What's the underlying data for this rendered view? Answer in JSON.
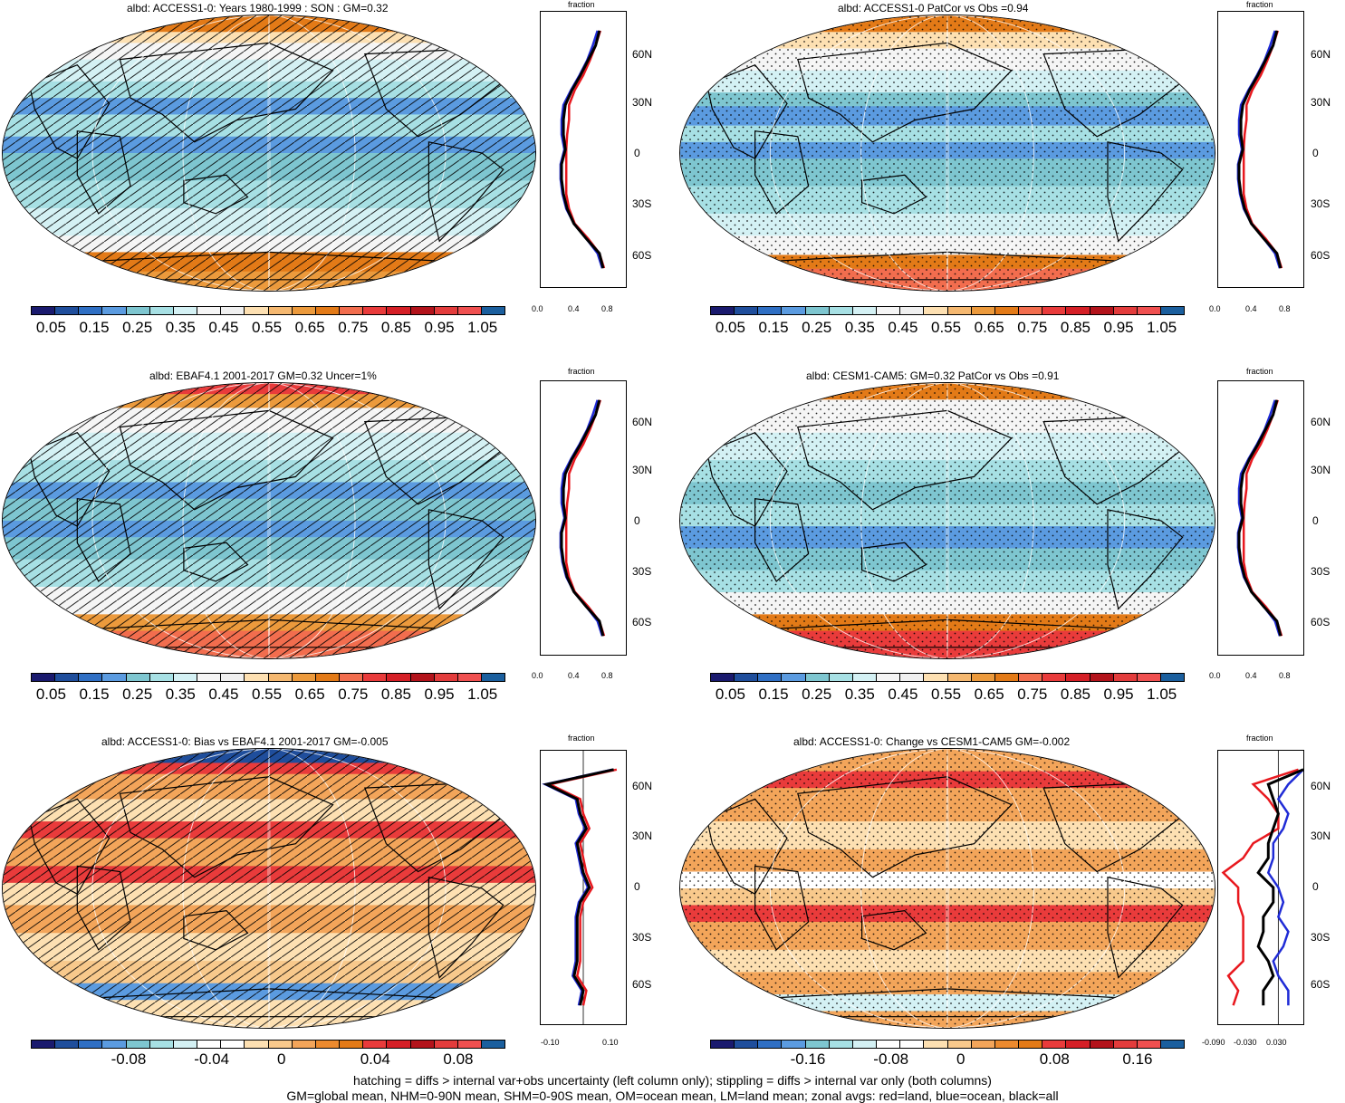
{
  "panels": [
    {
      "title": "albd: ACCESS1-0: Years 1980-1999 : SON : GM=0.32",
      "profile_axis_label": "fraction",
      "lat_ticks": [
        "60N",
        "30N",
        "0",
        "30S",
        "60S"
      ],
      "x_ticks": [
        "0.0",
        "0.4",
        "0.8"
      ],
      "colorbar_labels": [
        "0.05",
        "0.15",
        "0.25",
        "0.35",
        "0.45",
        "0.55",
        "0.65",
        "0.75",
        "0.85",
        "0.95",
        "1.05"
      ],
      "overlay": "hatching"
    },
    {
      "title": "albd: ACCESS1-0 PatCor vs Obs =0.94",
      "profile_axis_label": "fraction",
      "lat_ticks": [
        "60N",
        "30N",
        "0",
        "30S",
        "60S"
      ],
      "x_ticks": [
        "0.0",
        "0.4",
        "0.8"
      ],
      "colorbar_labels": [
        "0.05",
        "0.15",
        "0.25",
        "0.35",
        "0.45",
        "0.55",
        "0.65",
        "0.75",
        "0.85",
        "0.95",
        "1.05"
      ],
      "overlay": "stippling"
    },
    {
      "title": "albd: EBAF4.1 2001-2017 GM=0.32 Uncer=1%",
      "profile_axis_label": "fraction",
      "lat_ticks": [
        "60N",
        "30N",
        "0",
        "30S",
        "60S"
      ],
      "x_ticks": [
        "0.0",
        "0.4",
        "0.8"
      ],
      "colorbar_labels": [
        "0.05",
        "0.15",
        "0.25",
        "0.35",
        "0.45",
        "0.55",
        "0.65",
        "0.75",
        "0.85",
        "0.95",
        "1.05"
      ],
      "overlay": "hatching"
    },
    {
      "title": "albd: CESM1-CAM5: GM=0.32 PatCor vs Obs =0.91",
      "profile_axis_label": "fraction",
      "lat_ticks": [
        "60N",
        "30N",
        "0",
        "30S",
        "60S"
      ],
      "x_ticks": [
        "0.0",
        "0.4",
        "0.8"
      ],
      "colorbar_labels": [
        "0.05",
        "0.15",
        "0.25",
        "0.35",
        "0.45",
        "0.55",
        "0.65",
        "0.75",
        "0.85",
        "0.95",
        "1.05"
      ],
      "overlay": "stippling"
    },
    {
      "title": "albd: ACCESS1-0: Bias vs EBAF4.1 2001-2017  GM=-0.005",
      "profile_axis_label": "fraction",
      "lat_ticks": [
        "60N",
        "30N",
        "0",
        "30S",
        "60S"
      ],
      "x_ticks": [
        "-0.10",
        "0.10"
      ],
      "colorbar_labels": [
        "-0.08",
        "-0.04",
        "0",
        "0.04",
        "0.08"
      ],
      "overlay": "hatching"
    },
    {
      "title": "albd: ACCESS1-0: Change vs CESM1-CAM5 GM=-0.002",
      "profile_axis_label": "fraction",
      "lat_ticks": [
        "60N",
        "30N",
        "0",
        "30S",
        "60S"
      ],
      "x_ticks": [
        "-0.090",
        "-0.030",
        "0.030"
      ],
      "colorbar_labels": [
        "-0.16",
        "-0.08",
        "0",
        "0.08",
        "0.16"
      ],
      "overlay": "stippling"
    }
  ],
  "colormaps": {
    "absolute": [
      "#1a1a6e",
      "#1f4e9c",
      "#2f6fc4",
      "#5b9be0",
      "#7ec6d0",
      "#a7e0e4",
      "#d4f1f4",
      "#f5f5f5",
      "#f0f0f0",
      "#fde0b2",
      "#f5b870",
      "#ec9a3c",
      "#e37a17",
      "#f26d4e",
      "#e93b3b",
      "#d51f26",
      "#b3131b",
      "#e33c3c",
      "#f05050",
      "#1b5f9e"
    ],
    "diff": [
      "#1a1a6e",
      "#1f4e9c",
      "#2f6fc4",
      "#5b9be0",
      "#7ec6d0",
      "#a7e0e4",
      "#d4f1f4",
      "#ffffff",
      "#ffffff",
      "#fde0b2",
      "#f8c98c",
      "#f3a55a",
      "#ec8a2e",
      "#e37a17",
      "#e93b3b",
      "#d51f26",
      "#b3131b",
      "#e33c3c",
      "#f05050",
      "#1b5f9e"
    ]
  },
  "footer": {
    "line1": "hatching = diffs > internal var+obs uncertainty (left column only); stippling = diffs > internal var only (both columns)",
    "line2": "GM=global mean, NHM=0-90N mean, SHM=0-90S mean, OM=ocean mean, LM=land mean; zonal avgs: red=land, blue=ocean, black=all"
  },
  "zonal_profiles": {
    "lat": [
      80,
      70,
      60,
      50,
      40,
      30,
      20,
      10,
      0,
      -10,
      -20,
      -30,
      -40,
      -50,
      -60,
      -70,
      -80
    ],
    "absolute_all": [
      0.62,
      0.58,
      0.5,
      0.42,
      0.33,
      0.26,
      0.24,
      0.24,
      0.26,
      0.22,
      0.22,
      0.24,
      0.28,
      0.35,
      0.48,
      0.62,
      0.66
    ],
    "absolute_land": [
      0.63,
      0.58,
      0.52,
      0.45,
      0.36,
      0.3,
      0.3,
      0.28,
      0.27,
      0.27,
      0.27,
      0.27,
      0.3,
      0.36,
      0.5,
      0.62,
      0.67
    ],
    "absolute_ocean": [
      0.6,
      0.55,
      0.49,
      0.41,
      0.32,
      0.24,
      0.22,
      0.22,
      0.25,
      0.21,
      0.21,
      0.23,
      0.27,
      0.35,
      0.48,
      0.6,
      0.65
    ],
    "bias_all": [
      0.1,
      -0.12,
      -0.02,
      -0.01,
      0.01,
      -0.02,
      -0.01,
      0.0,
      0.02,
      -0.01,
      -0.02,
      -0.02,
      -0.02,
      -0.02,
      -0.03,
      0.0,
      -0.01
    ],
    "change_all": [
      0.05,
      -0.02,
      -0.01,
      0.0,
      -0.01,
      -0.02,
      -0.02,
      -0.04,
      -0.01,
      -0.01,
      -0.03,
      -0.03,
      -0.04,
      -0.02,
      -0.01,
      -0.03,
      -0.03
    ],
    "change_land": [
      0.04,
      -0.05,
      -0.02,
      0.0,
      0.0,
      -0.05,
      -0.07,
      -0.11,
      -0.08,
      -0.08,
      -0.07,
      -0.07,
      -0.07,
      -0.07,
      -0.1,
      -0.08,
      -0.09
    ],
    "change_ocean": [
      0.05,
      0.02,
      0.0,
      0.02,
      0.01,
      -0.01,
      -0.01,
      -0.02,
      0.0,
      0.01,
      0.0,
      0.02,
      0.01,
      -0.01,
      0.0,
      0.02,
      0.02
    ]
  }
}
